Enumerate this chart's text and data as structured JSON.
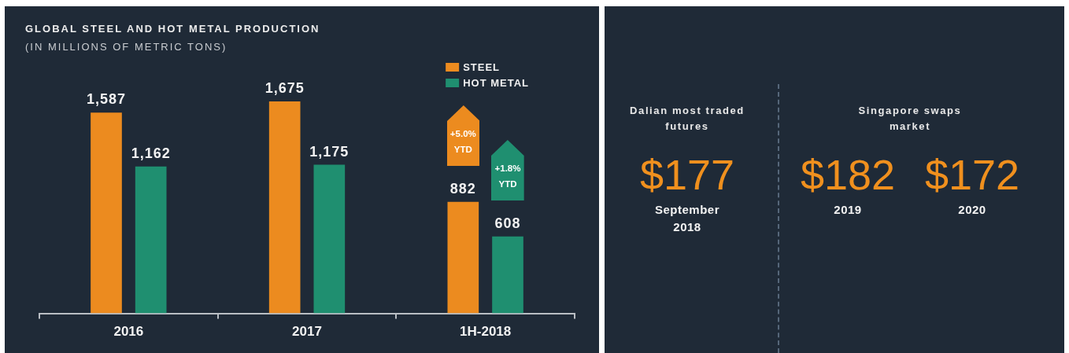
{
  "chart_data": [
    {
      "type": "bar",
      "title": "GLOBAL STEEL AND HOT METAL PRODUCTION",
      "subtitle": "(IN MILLIONS OF METRIC TONS)",
      "categories": [
        "2016",
        "2017",
        "1H-2018"
      ],
      "series": [
        {
          "name": "STEEL",
          "color": "#ec8b1f",
          "values": [
            1587,
            1675,
            882
          ],
          "value_labels": [
            "1,587",
            "1,675",
            "882"
          ]
        },
        {
          "name": "HOT METAL",
          "color": "#1f8f70",
          "values": [
            1162,
            1175,
            608
          ],
          "value_labels": [
            "1,162",
            "1,175",
            "608"
          ]
        }
      ],
      "tick_labels": "x",
      "legend": "top right",
      "annotations": [
        "+5.0% YTD",
        "+1.8% YTD"
      ]
    },
    {
      "type": "other",
      "title": "Dalian most traded futures",
      "categories": [
        "September 2018"
      ],
      "annotations": [
        "$177"
      ]
    },
    {
      "type": "other",
      "title": "Singapore swaps market",
      "categories": [
        "2019",
        "2020"
      ],
      "annotations": [
        "$182",
        "$172"
      ]
    }
  ]
}
